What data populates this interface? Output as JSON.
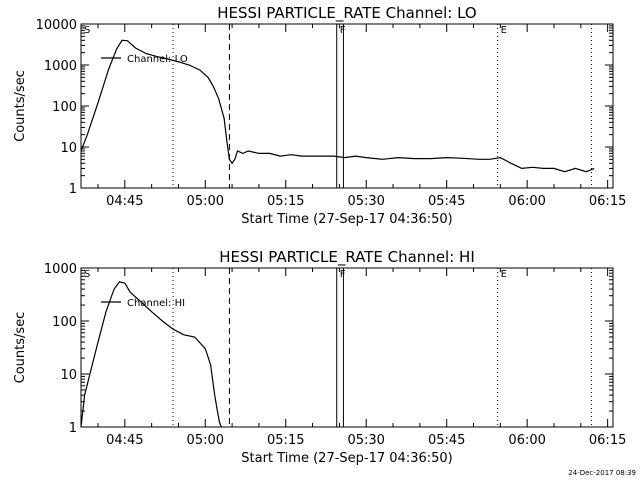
{
  "footer": {
    "stamp": "24-Dec-2017 08:39"
  },
  "chart_data": [
    {
      "type": "line",
      "title": "HESSI PARTICLE_RATE Channel: LO",
      "xlabel": "Start Time (27-Sep-17 04:36:50)",
      "ylabel": "Counts/sec",
      "yscale": "log",
      "ylim": [
        1,
        10000
      ],
      "xlim": [
        "04:36:50",
        "06:16:00"
      ],
      "grid": false,
      "legend_position": "top-left",
      "x_tick_labels": [
        "04:45",
        "05:00",
        "05:15",
        "05:30",
        "05:45",
        "06:00",
        "06:15"
      ],
      "y_tick_labels": [
        "1",
        "10",
        "100",
        "1000",
        "10000"
      ],
      "markers": [
        {
          "label": "S",
          "time": "04:36:50",
          "style": "dotted"
        },
        {
          "label": "",
          "time": "04:54:00",
          "style": "dotted"
        },
        {
          "label": "",
          "time": "05:04:30",
          "style": "dashed"
        },
        {
          "label": "F",
          "time": "05:24:30",
          "style": "solid"
        },
        {
          "label": "",
          "time": "05:25:45",
          "style": "solid"
        },
        {
          "label": "E",
          "time": "05:54:30",
          "style": "dotted"
        },
        {
          "label": "",
          "time": "06:12:00",
          "style": "dotted"
        }
      ],
      "series": [
        {
          "name": "Channel: LO",
          "x": [
            "04:36:50",
            "04:38:00",
            "04:40:00",
            "04:42:00",
            "04:43:30",
            "04:44:30",
            "04:45:30",
            "04:47:00",
            "04:49:00",
            "04:51:00",
            "04:53:00",
            "04:55:00",
            "04:57:00",
            "04:59:00",
            "05:00:30",
            "05:01:30",
            "05:02:30",
            "05:03:30",
            "05:04:00",
            "05:04:30",
            "05:05:00",
            "05:05:30",
            "05:06:00",
            "05:07:00",
            "05:08:00",
            "05:10:00",
            "05:12:00",
            "05:14:00",
            "05:16:00",
            "05:18:00",
            "05:20:00",
            "05:22:00",
            "05:24:00",
            "05:26:00",
            "05:28:00",
            "05:30:00",
            "05:33:00",
            "05:36:00",
            "05:39:00",
            "05:42:00",
            "05:45:00",
            "05:48:00",
            "05:51:00",
            "05:53:00",
            "05:55:00",
            "05:57:00",
            "05:59:00",
            "06:01:00",
            "06:03:00",
            "06:05:00",
            "06:07:00",
            "06:09:00",
            "06:11:00",
            "06:12:30"
          ],
          "values": [
            8,
            20,
            120,
            800,
            2500,
            4000,
            3900,
            2600,
            1900,
            1600,
            1400,
            1200,
            1000,
            750,
            500,
            300,
            150,
            50,
            15,
            5,
            4,
            5,
            8,
            7,
            8,
            7,
            7,
            6,
            6.5,
            6,
            6,
            6,
            6,
            5.5,
            6,
            5.5,
            5,
            5.5,
            5.2,
            5.2,
            5.5,
            5.3,
            5,
            5,
            5.5,
            4,
            3,
            3.2,
            3,
            3,
            2.5,
            3,
            2.5,
            3
          ]
        }
      ]
    },
    {
      "type": "line",
      "title": "HESSI PARTICLE_RATE Channel: HI",
      "xlabel": "Start Time (27-Sep-17 04:36:50)",
      "ylabel": "Counts/sec",
      "yscale": "log",
      "ylim": [
        1,
        1000
      ],
      "xlim": [
        "04:36:50",
        "06:16:00"
      ],
      "grid": false,
      "legend_position": "top-left",
      "x_tick_labels": [
        "04:45",
        "05:00",
        "05:15",
        "05:30",
        "05:45",
        "06:00",
        "06:15"
      ],
      "y_tick_labels": [
        "1",
        "10",
        "100",
        "1000"
      ],
      "markers": [
        {
          "label": "S",
          "time": "04:36:50",
          "style": "dotted"
        },
        {
          "label": "",
          "time": "04:54:00",
          "style": "dotted"
        },
        {
          "label": "",
          "time": "05:04:30",
          "style": "dashed"
        },
        {
          "label": "F",
          "time": "05:24:30",
          "style": "solid"
        },
        {
          "label": "",
          "time": "05:25:45",
          "style": "solid"
        },
        {
          "label": "E",
          "time": "05:54:30",
          "style": "dotted"
        },
        {
          "label": "",
          "time": "06:12:00",
          "style": "dotted"
        }
      ],
      "series": [
        {
          "name": "Channel: HI",
          "x": [
            "04:36:50",
            "04:37:30",
            "04:38:30",
            "04:40:00",
            "04:41:30",
            "04:43:00",
            "04:44:00",
            "04:45:00",
            "04:46:00",
            "04:48:00",
            "04:50:00",
            "04:52:00",
            "04:54:00",
            "04:56:00",
            "04:58:00",
            "05:00:00",
            "05:01:00",
            "05:01:45",
            "05:02:15",
            "05:02:40",
            "05:03:00"
          ],
          "values": [
            1,
            4,
            10,
            40,
            150,
            400,
            550,
            520,
            350,
            230,
            150,
            100,
            70,
            55,
            50,
            30,
            15,
            4,
            2,
            1.2,
            1
          ]
        }
      ]
    }
  ]
}
